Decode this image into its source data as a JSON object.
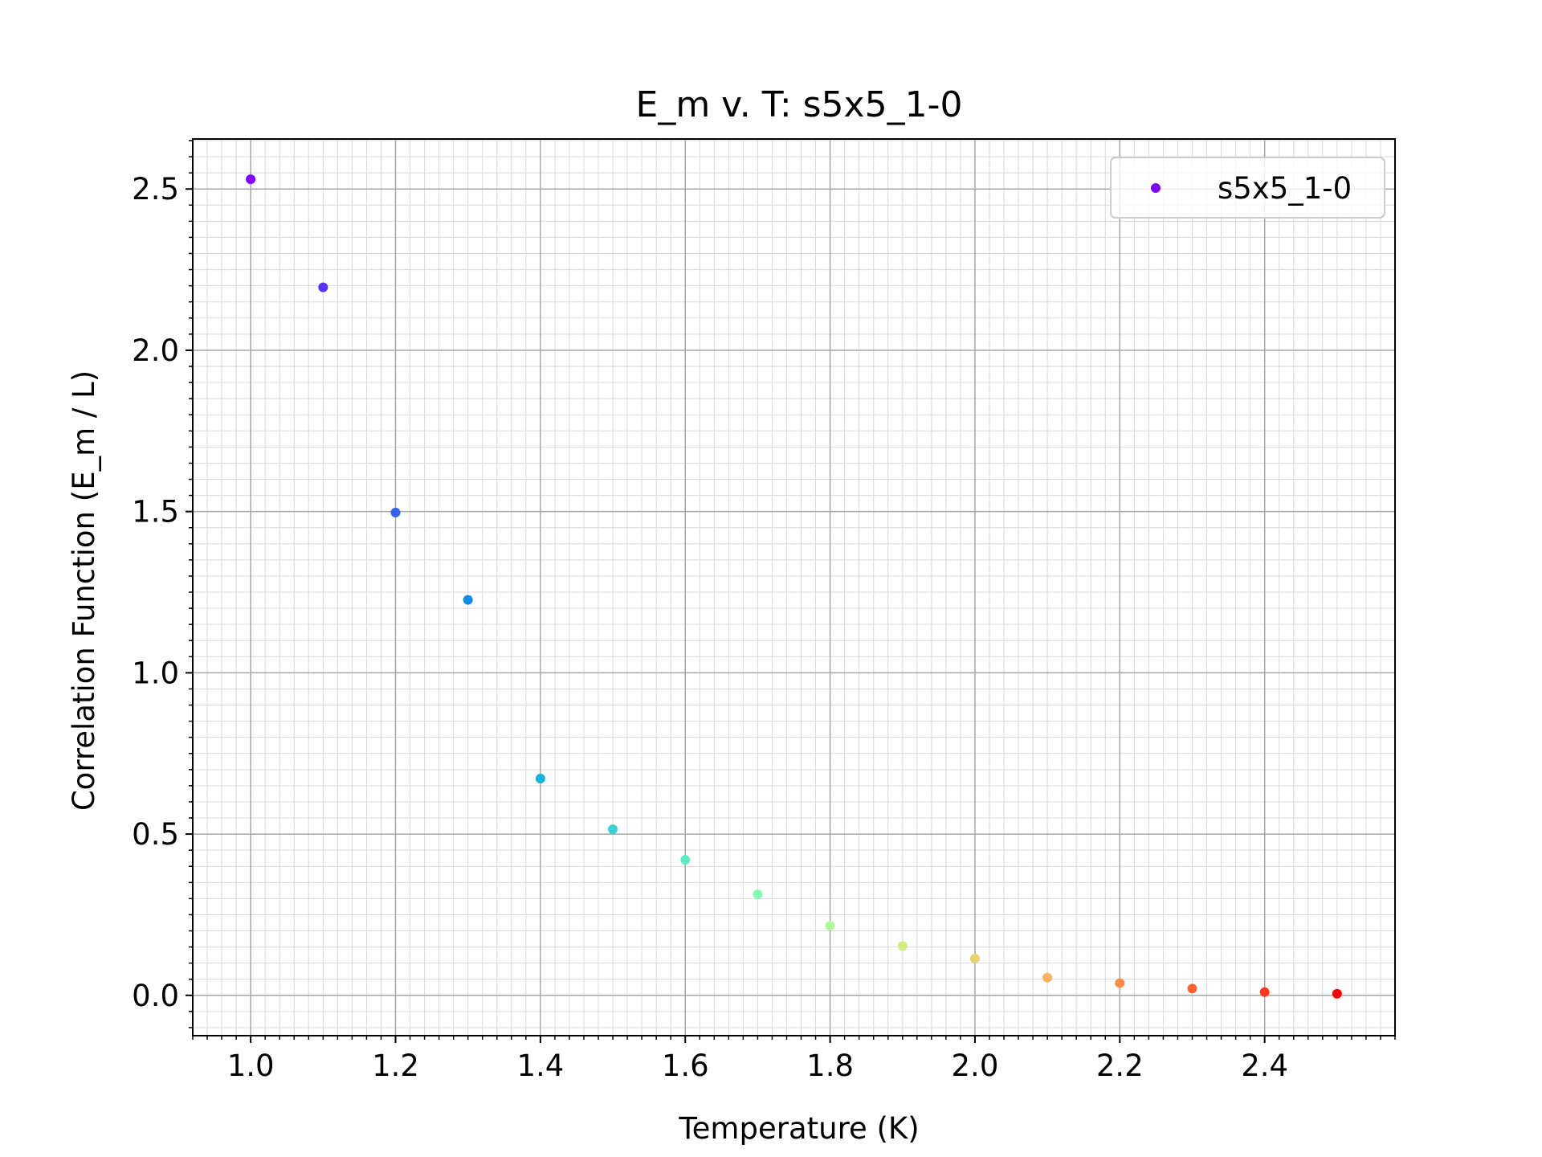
{
  "chart_data": {
    "type": "scatter",
    "title": "E_m v. T: s5x5_1-0",
    "xlabel": "Temperature (K)",
    "ylabel": "Correlation Function (E_m / L)",
    "xlim": [
      0.92,
      2.58
    ],
    "ylim": [
      -0.125,
      2.655
    ],
    "grid": true,
    "minor_grid": true,
    "legend_position": "top-right",
    "x_ticks": [
      {
        "value": 1.0,
        "label": "1.0"
      },
      {
        "value": 1.2,
        "label": "1.2"
      },
      {
        "value": 1.4,
        "label": "1.4"
      },
      {
        "value": 1.6,
        "label": "1.6"
      },
      {
        "value": 1.8,
        "label": "1.8"
      },
      {
        "value": 2.0,
        "label": "2.0"
      },
      {
        "value": 2.2,
        "label": "2.2"
      },
      {
        "value": 2.4,
        "label": "2.4"
      }
    ],
    "y_ticks": [
      {
        "value": 0.0,
        "label": "0.0"
      },
      {
        "value": 0.5,
        "label": "0.5"
      },
      {
        "value": 1.0,
        "label": "1.0"
      },
      {
        "value": 1.5,
        "label": "1.5"
      },
      {
        "value": 2.0,
        "label": "2.0"
      },
      {
        "value": 2.5,
        "label": "2.5"
      }
    ],
    "series": [
      {
        "name": "s5x5_1-0",
        "legend_color": "#8000ff",
        "points": [
          {
            "x": 1.0,
            "y": 2.53,
            "color": "#8000ff"
          },
          {
            "x": 1.1,
            "y": 2.195,
            "color": "#5a31f8"
          },
          {
            "x": 1.2,
            "y": 1.497,
            "color": "#3261f1"
          },
          {
            "x": 1.3,
            "y": 1.226,
            "color": "#0a8ce8"
          },
          {
            "x": 1.4,
            "y": 0.672,
            "color": "#12b2e1"
          },
          {
            "x": 1.5,
            "y": 0.515,
            "color": "#38d4d4"
          },
          {
            "x": 1.6,
            "y": 0.42,
            "color": "#5eecc4"
          },
          {
            "x": 1.7,
            "y": 0.313,
            "color": "#84fcb2"
          },
          {
            "x": 1.8,
            "y": 0.216,
            "color": "#acfc9c"
          },
          {
            "x": 1.9,
            "y": 0.153,
            "color": "#d4ec84"
          },
          {
            "x": 2.0,
            "y": 0.114,
            "color": "#e8d46c"
          },
          {
            "x": 2.1,
            "y": 0.055,
            "color": "#ffb360"
          },
          {
            "x": 2.2,
            "y": 0.038,
            "color": "#ff8b48"
          },
          {
            "x": 2.3,
            "y": 0.021,
            "color": "#ff6332"
          },
          {
            "x": 2.4,
            "y": 0.01,
            "color": "#ff3a1c"
          },
          {
            "x": 2.5,
            "y": 0.005,
            "color": "#ff0000"
          }
        ]
      }
    ]
  }
}
